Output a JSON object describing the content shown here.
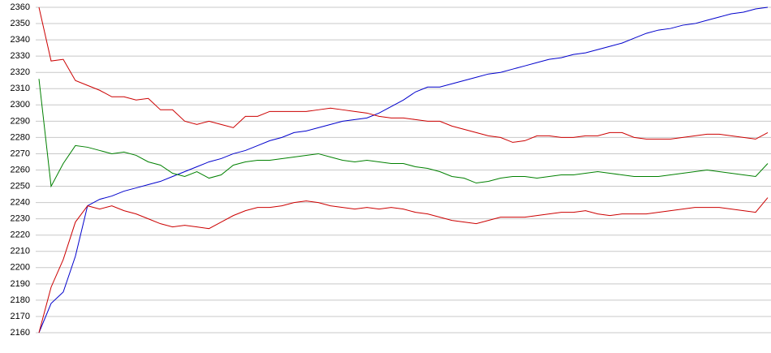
{
  "chart_data": {
    "type": "line",
    "ylim": [
      2160,
      2360
    ],
    "yticks": [
      2160,
      2170,
      2180,
      2190,
      2200,
      2210,
      2220,
      2230,
      2240,
      2250,
      2260,
      2270,
      2280,
      2290,
      2300,
      2310,
      2320,
      2330,
      2340,
      2350,
      2360
    ],
    "grid": true,
    "series": [
      {
        "color": "#0000cc",
        "values": [
          2160,
          2178,
          2185,
          2207,
          2238,
          2242,
          2244,
          2247,
          2249,
          2251,
          2253,
          2256,
          2259,
          2262,
          2265,
          2267,
          2270,
          2272,
          2275,
          2278,
          2280,
          2283,
          2284,
          2286,
          2288,
          2290,
          2291,
          2292,
          2295,
          2299,
          2303,
          2308,
          2311,
          2311,
          2313,
          2315,
          2317,
          2319,
          2320,
          2322,
          2324,
          2326,
          2328,
          2329,
          2331,
          2332,
          2334,
          2336,
          2338,
          2341,
          2344,
          2346,
          2347,
          2349,
          2350,
          2352,
          2354,
          2356,
          2357,
          2359,
          2360
        ]
      },
      {
        "color": "#cc0000",
        "values": [
          2360,
          2327,
          2328,
          2315,
          2312,
          2309,
          2305,
          2305,
          2303,
          2304,
          2297,
          2297,
          2290,
          2288,
          2290,
          2288,
          2286,
          2293,
          2293,
          2296,
          2296,
          2296,
          2296,
          2297,
          2298,
          2297,
          2296,
          2295,
          2293,
          2292,
          2292,
          2291,
          2290,
          2290,
          2287,
          2285,
          2283,
          2281,
          2280,
          2277,
          2278,
          2281,
          2281,
          2280,
          2280,
          2281,
          2281,
          2283,
          2283,
          2280,
          2279,
          2279,
          2279,
          2280,
          2281,
          2282,
          2282,
          2281,
          2280,
          2279,
          2283
        ]
      },
      {
        "color": "#008000",
        "values": [
          2316,
          2250,
          2264,
          2275,
          2274,
          2272,
          2270,
          2271,
          2269,
          2265,
          2263,
          2258,
          2256,
          2259,
          2255,
          2257,
          2263,
          2265,
          2266,
          2266,
          2267,
          2268,
          2269,
          2270,
          2268,
          2266,
          2265,
          2266,
          2265,
          2264,
          2264,
          2262,
          2261,
          2259,
          2256,
          2255,
          2252,
          2253,
          2255,
          2256,
          2256,
          2255,
          2256,
          2257,
          2257,
          2258,
          2259,
          2258,
          2257,
          2256,
          2256,
          2256,
          2257,
          2258,
          2259,
          2260,
          2259,
          2258,
          2257,
          2256,
          2264
        ]
      },
      {
        "color": "#cc0000",
        "values": [
          2160,
          2188,
          2205,
          2228,
          2238,
          2236,
          2238,
          2235,
          2233,
          2230,
          2227,
          2225,
          2226,
          2225,
          2224,
          2228,
          2232,
          2235,
          2237,
          2237,
          2238,
          2240,
          2241,
          2240,
          2238,
          2237,
          2236,
          2237,
          2236,
          2237,
          2236,
          2234,
          2233,
          2231,
          2229,
          2228,
          2227,
          2229,
          2231,
          2231,
          2231,
          2232,
          2233,
          2234,
          2234,
          2235,
          2233,
          2232,
          2233,
          2233,
          2233,
          2234,
          2235,
          2236,
          2237,
          2237,
          2237,
          2236,
          2235,
          2234,
          2243
        ]
      }
    ]
  }
}
